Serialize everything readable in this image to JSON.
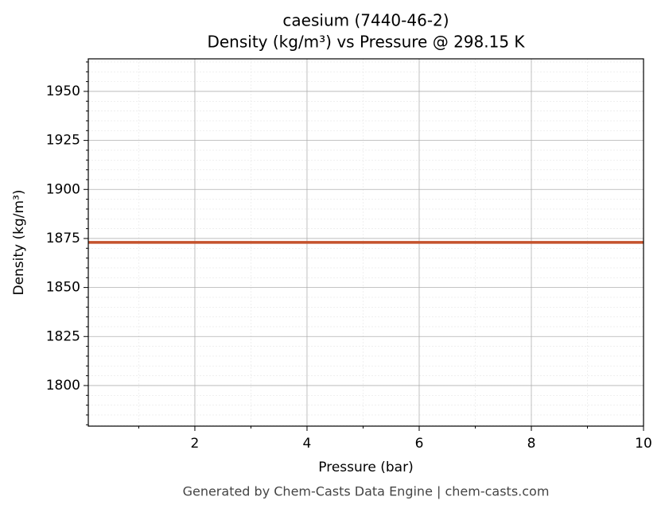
{
  "chart_data": {
    "type": "line",
    "title": "caesium (7440-46-2)",
    "subtitle": "Density (kg/m³) vs Pressure @ 298.15 K",
    "x_label": "Pressure (bar)",
    "y_label": "Density (kg/m³)",
    "footer": "Generated by Chem-Casts Data Engine | chem-casts.com",
    "x": [
      0.1,
      10
    ],
    "series": [
      {
        "name": "Density",
        "color": "#c4522c",
        "values": [
          1873,
          1873
        ]
      }
    ],
    "xlim": [
      0.1,
      10
    ],
    "ylim": [
      1779.3,
      1966.6
    ],
    "xticks": [
      2,
      4,
      6,
      8,
      10
    ],
    "yticks": [
      1800,
      1825,
      1850,
      1875,
      1900,
      1925,
      1950
    ],
    "xticks_minor": [
      1,
      3,
      5,
      7,
      9
    ],
    "yticks_minor": [
      1780,
      1785,
      1790,
      1795,
      1805,
      1810,
      1815,
      1820,
      1830,
      1835,
      1840,
      1845,
      1855,
      1860,
      1865,
      1870,
      1880,
      1885,
      1890,
      1895,
      1905,
      1910,
      1915,
      1920,
      1930,
      1935,
      1940,
      1945,
      1955,
      1960,
      1965
    ],
    "grid": true
  }
}
